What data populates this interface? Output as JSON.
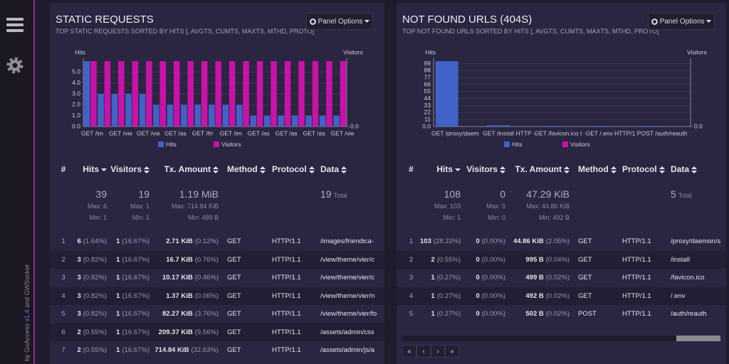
{
  "sidebar": {
    "credit_prefix": "by GoAccess",
    "version": "v1.4",
    "credit_suffix": "and GWSocket"
  },
  "panels": [
    {
      "title": "STATIC REQUESTS",
      "subtitle": "TOP STATIC REQUESTS SORTED BY HITS [, AVGTS, CUMTS, MAXTS, MTHD, PROTO]",
      "options": "Panel Options",
      "chart": {
        "type": "bar",
        "y_label": "Hits",
        "y2_label": "Visitors",
        "categories": [
          "GET /im",
          null,
          "GET /vie",
          null,
          "GET /vie",
          null,
          "GET /as",
          null,
          "GET /fri",
          null,
          "GET /im",
          null,
          "GET /as",
          null,
          "GET /as",
          null,
          "GET /as",
          null,
          "GET /vie"
        ],
        "series": [
          {
            "name": "Hits",
            "color": "#3f63c6",
            "values": [
              6,
              3,
              3,
              3,
              3,
              2,
              2,
              2,
              2,
              2,
              2,
              2,
              1,
              1,
              1,
              1,
              1,
              1,
              1
            ]
          },
          {
            "name": "Visitors",
            "color": "#c812a8",
            "axis": "y2",
            "values": [
              1,
              1,
              1,
              1,
              1,
              1,
              1,
              1,
              1,
              1,
              1,
              1,
              1,
              1,
              1,
              1,
              1,
              1,
              1
            ]
          }
        ],
        "ylim": [
          0,
          6
        ],
        "yticks": [
          {
            "value": 0,
            "label": "0.0"
          },
          {
            "value": 1,
            "label": "1.0"
          },
          {
            "value": 2,
            "label": "2.0"
          },
          {
            "value": 3,
            "label": "3.0"
          },
          {
            "value": 4,
            "label": "4.0"
          },
          {
            "value": 5,
            "label": "5.0"
          }
        ],
        "y2lim": [
          0,
          1
        ],
        "y2ticks": [
          {
            "value": 0,
            "label": "0.0"
          }
        ],
        "grid": true
      },
      "table": {
        "columns": [
          "#",
          "Hits",
          "Visitors",
          "Tx. Amount",
          "Method",
          "Protocol",
          "Data"
        ],
        "summary": {
          "hits": [
            "39",
            "Max: 6",
            "Min: 1"
          ],
          "visitors": [
            "19",
            "Max: 1",
            "Min: 1"
          ],
          "tx": [
            "1.19 MiB",
            "Max: 714.84 KiB",
            "Min: 489 B"
          ],
          "data": [
            "19",
            "Total"
          ]
        },
        "rows": [
          [
            "1",
            "6",
            "(1.64%)",
            "1",
            "(16.67%)",
            "2.71 KiB",
            "(0.12%)",
            "GET",
            "HTTP/1.1",
            "/images/friendica-"
          ],
          [
            "2",
            "3",
            "(0.82%)",
            "1",
            "(16.67%)",
            "16.7 KiB",
            "(0.76%)",
            "GET",
            "HTTP/1.1",
            "/view/theme/vier/c"
          ],
          [
            "3",
            "3",
            "(0.82%)",
            "1",
            "(16.67%)",
            "10.17 KiB",
            "(0.46%)",
            "GET",
            "HTTP/1.1",
            "/view/theme/vier/c"
          ],
          [
            "4",
            "3",
            "(0.82%)",
            "1",
            "(16.67%)",
            "1.37 KiB",
            "(0.06%)",
            "GET",
            "HTTP/1.1",
            "/view/theme/vier/n"
          ],
          [
            "5",
            "3",
            "(0.82%)",
            "1",
            "(16.67%)",
            "82.27 KiB",
            "(3.76%)",
            "GET",
            "HTTP/1.1",
            "/view/theme/vier/fo"
          ],
          [
            "6",
            "2",
            "(0.55%)",
            "1",
            "(16.67%)",
            "209.37 KiB",
            "(9.56%)",
            "GET",
            "HTTP/1.1",
            "/assets/admin/css"
          ],
          [
            "7",
            "2",
            "(0.55%)",
            "1",
            "(16.67%)",
            "714.84 KiB",
            "(32.63%)",
            "GET",
            "HTTP/1.1",
            "/assets/admin/js/a"
          ]
        ]
      }
    },
    {
      "title": "NOT FOUND URLS (404S)",
      "subtitle": "TOP NOT FOUND URLS SORTED BY HITS [, AVGTS, CUMTS, MAXTS, MTHD, PROTO]",
      "options": "Panel Options",
      "chart": {
        "type": "bar",
        "y_label": "Hits",
        "y2_label": "Visitors",
        "categories": [
          "GET /proxy/daem",
          "GET /install HTTP",
          "GET /favicon.ico I",
          "GET /.env HTTP/1",
          "POST /auth/reauth"
        ],
        "series": [
          {
            "name": "Hits",
            "color": "#3f63c6",
            "values": [
              103,
              2,
              1,
              1,
              1
            ]
          },
          {
            "name": "Visitors",
            "color": "#c812a8",
            "axis": "y2",
            "values": [
              0,
              0,
              0,
              0,
              0
            ]
          }
        ],
        "ylim": [
          0,
          103
        ],
        "yticks": [
          {
            "value": 0,
            "label": "0.0"
          },
          11,
          22,
          33,
          44,
          55,
          66,
          77,
          88,
          99
        ],
        "y2lim": [
          0,
          1
        ],
        "y2ticks": [
          {
            "value": 0,
            "label": "0.0"
          }
        ],
        "grid": true
      },
      "table": {
        "columns": [
          "#",
          "Hits",
          "Visitors",
          "Tx. Amount",
          "Method",
          "Protocol",
          "Data"
        ],
        "summary": {
          "hits": [
            "108",
            "Max: 103",
            "Min: 1"
          ],
          "visitors": [
            "0",
            "Max: 0",
            "Min: 0"
          ],
          "tx": [
            "47.29 KiB",
            "Max: 44.86 KiB",
            "Min: 492 B"
          ],
          "data": [
            "5",
            "Total"
          ]
        },
        "rows": [
          [
            "1",
            "103",
            "(28.22%)",
            "0",
            "(0.00%)",
            "44.86 KiB",
            "(2.05%)",
            "GET",
            "HTTP/1.1",
            "/proxy/daemon/s"
          ],
          [
            "2",
            "2",
            "(0.55%)",
            "0",
            "(0.00%)",
            "995 B",
            "(0.04%)",
            "GET",
            "HTTP/1.1",
            "/install"
          ],
          [
            "3",
            "1",
            "(0.27%)",
            "0",
            "(0.00%)",
            "499 B",
            "(0.02%)",
            "GET",
            "HTTP/1.1",
            "/favicon.ico"
          ],
          [
            "4",
            "1",
            "(0.27%)",
            "0",
            "(0.00%)",
            "492 B",
            "(0.02%)",
            "GET",
            "HTTP/1.1",
            "/.env"
          ],
          [
            "5",
            "1",
            "(0.27%)",
            "0",
            "(0.00%)",
            "502 B",
            "(0.02%)",
            "POST",
            "HTTP/1.1",
            "/auth/reauth"
          ]
        ]
      },
      "pagination": [
        "«",
        "‹",
        "›",
        "»"
      ]
    }
  ]
}
